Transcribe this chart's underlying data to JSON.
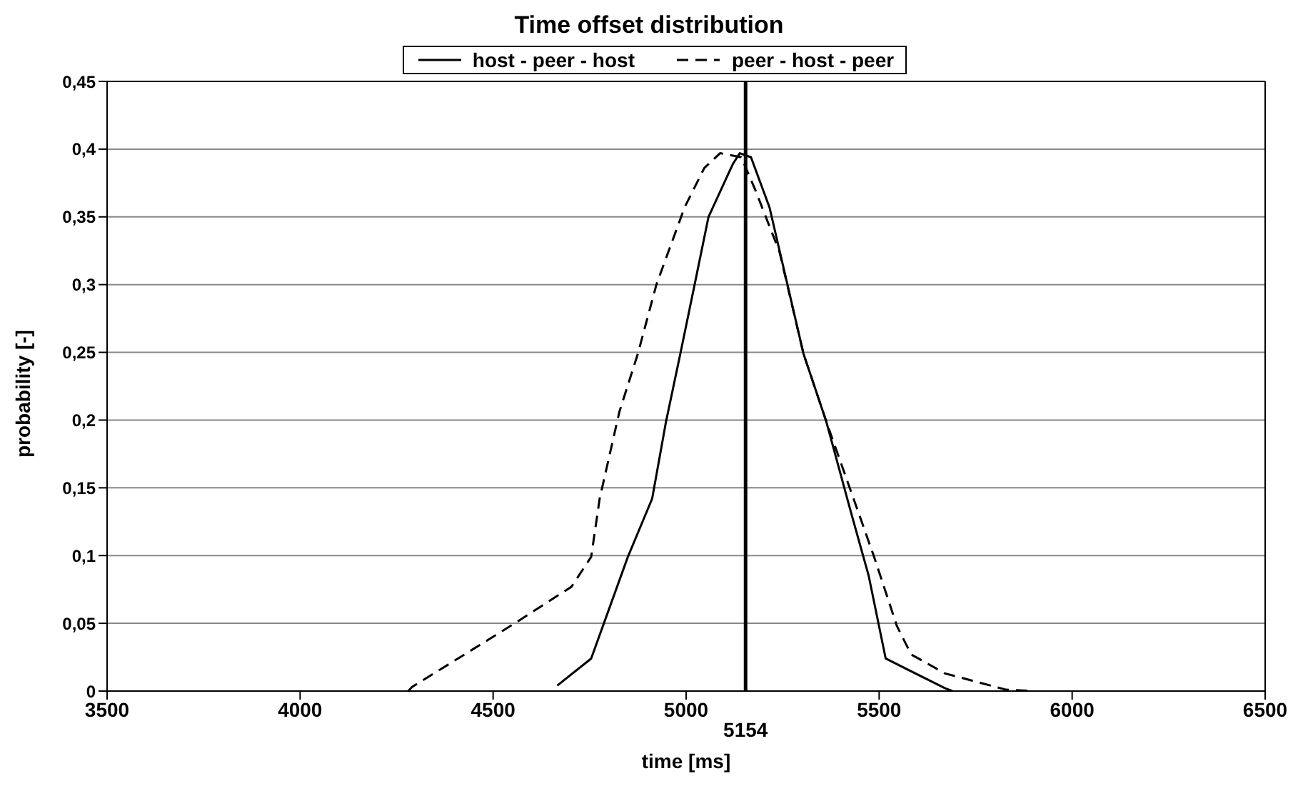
{
  "chart_data": {
    "type": "line",
    "title": "Time offset distribution",
    "xlabel": "time [ms]",
    "ylabel": "probability [-]",
    "xlim": [
      3500,
      6500
    ],
    "xticks": [
      3500,
      4000,
      4500,
      5000,
      5500,
      6000,
      6500
    ],
    "ylim": [
      0,
      0.45
    ],
    "yticks": [
      {
        "value": 0,
        "label": "0"
      },
      {
        "value": 0.05,
        "label": "0,05"
      },
      {
        "value": 0.1,
        "label": "0,1"
      },
      {
        "value": 0.15,
        "label": "0,15"
      },
      {
        "value": 0.2,
        "label": "0,2"
      },
      {
        "value": 0.25,
        "label": "0,25"
      },
      {
        "value": 0.3,
        "label": "0,3"
      },
      {
        "value": 0.35,
        "label": "0,35"
      },
      {
        "value": 0.4,
        "label": "0,4"
      },
      {
        "value": 0.45,
        "label": "0,45"
      }
    ],
    "grid": "y",
    "legend": "top",
    "marker": "none",
    "ref_lines": [
      {
        "axis": "x",
        "value": 5154,
        "label": "5154",
        "color": "#000000"
      }
    ],
    "series": [
      {
        "name": "host - peer - host",
        "color": "#000000",
        "line_style": "solid",
        "x": [
          4666,
          4754,
          4849,
          4912,
          4948,
          4985,
          5022,
          5058,
          5121,
          5139,
          5168,
          5216,
          5304,
          5363,
          5425,
          5473,
          5517,
          5671,
          5690
        ],
        "values": [
          0.004,
          0.024,
          0.099,
          0.142,
          0.199,
          0.249,
          0.3,
          0.35,
          0.389,
          0.397,
          0.394,
          0.357,
          0.249,
          0.199,
          0.134,
          0.085,
          0.024,
          0.002,
          0
        ]
      },
      {
        "name": "peer - host - peer",
        "color": "#000000",
        "line_style": "dashed",
        "x": [
          4280,
          4290,
          4556,
          4703,
          4754,
          4776,
          4827,
          4875,
          4923,
          4996,
          5047,
          5088,
          5143,
          5179,
          5242,
          5304,
          5363,
          5425,
          5487,
          5546,
          5583,
          5671,
          5829,
          5900
        ],
        "values": [
          0,
          0.003,
          0.05,
          0.077,
          0.099,
          0.142,
          0.206,
          0.249,
          0.3,
          0.357,
          0.386,
          0.397,
          0.394,
          0.37,
          0.324,
          0.249,
          0.199,
          0.149,
          0.099,
          0.048,
          0.027,
          0.013,
          0.001,
          0
        ]
      }
    ]
  }
}
